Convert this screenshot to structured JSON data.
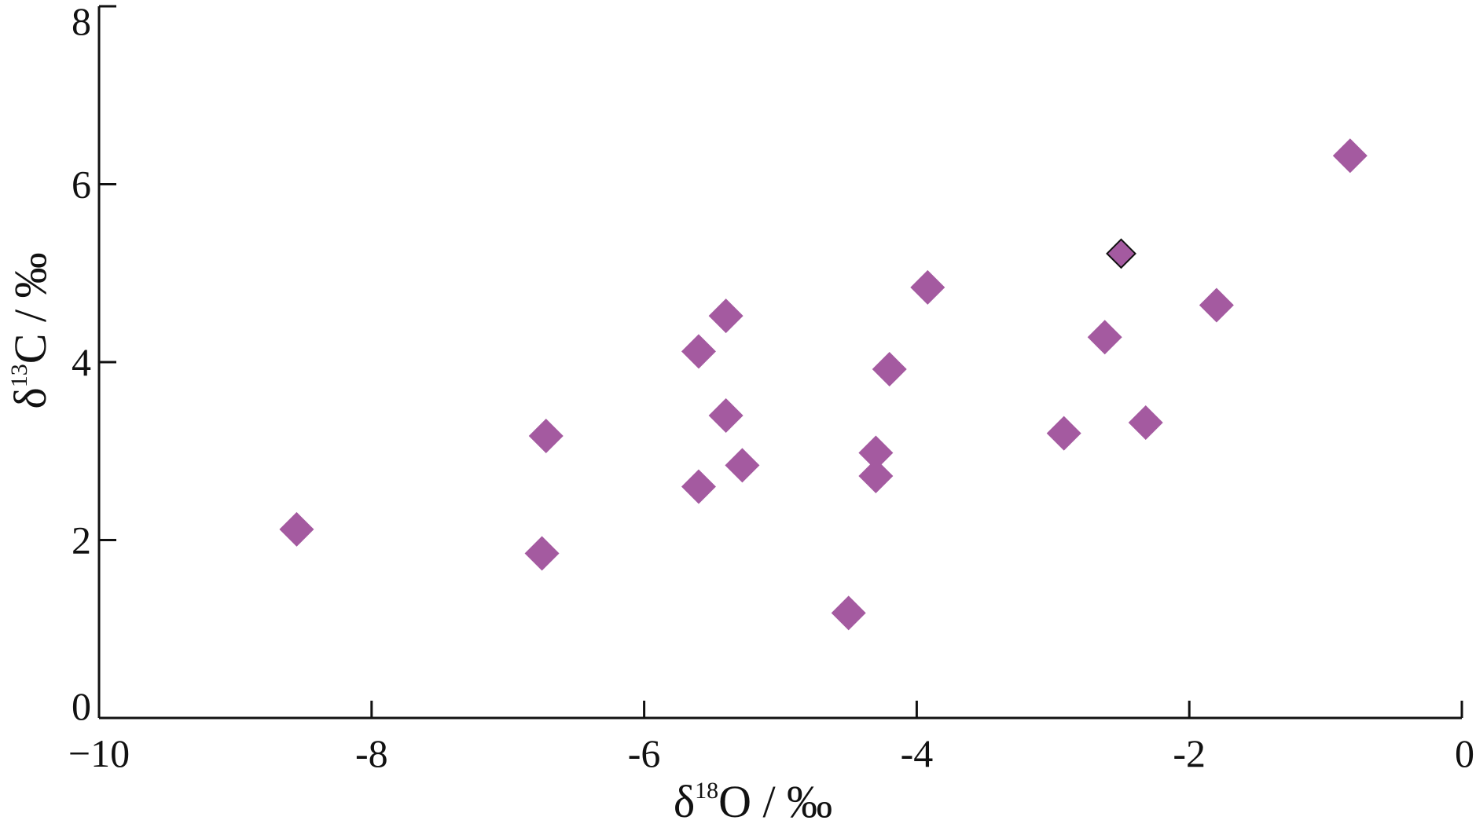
{
  "chart_data": {
    "type": "scatter",
    "title": "",
    "xlabel": {
      "prefix": "δ",
      "sup": "18",
      "suffix": "O / ‰"
    },
    "ylabel": {
      "prefix": "δ",
      "sup": "13",
      "suffix": "C / ‰"
    },
    "xlim": [
      -10,
      0
    ],
    "ylim": [
      0,
      8
    ],
    "x_ticks": [
      -10,
      -8,
      -6,
      -4,
      -2,
      0
    ],
    "x_tick_labels": [
      "−10",
      "-8",
      "-6",
      "-4",
      "-2",
      "0"
    ],
    "y_ticks": [
      0,
      2,
      4,
      6,
      8
    ],
    "y_tick_labels": [
      "0",
      "2",
      "4",
      "6",
      "8"
    ],
    "grid": false,
    "marker": "diamond",
    "marker_color": "#a45aa0",
    "highlight_stroke": "#111111",
    "series": [
      {
        "points": [
          {
            "x": -8.55,
            "y": 2.12
          },
          {
            "x": -6.75,
            "y": 1.85
          },
          {
            "x": -6.72,
            "y": 3.17
          },
          {
            "x": -5.6,
            "y": 2.6
          },
          {
            "x": -5.6,
            "y": 4.12
          },
          {
            "x": -5.4,
            "y": 4.52
          },
          {
            "x": -5.4,
            "y": 3.4
          },
          {
            "x": -5.28,
            "y": 2.84
          },
          {
            "x": -4.5,
            "y": 1.18
          },
          {
            "x": -4.3,
            "y": 2.98
          },
          {
            "x": -4.3,
            "y": 2.72
          },
          {
            "x": -4.2,
            "y": 3.92
          },
          {
            "x": -3.92,
            "y": 4.84
          },
          {
            "x": -2.92,
            "y": 3.2
          },
          {
            "x": -2.62,
            "y": 4.28
          },
          {
            "x": -2.5,
            "y": 5.22,
            "highlight": true
          },
          {
            "x": -2.32,
            "y": 3.32
          },
          {
            "x": -1.8,
            "y": 4.64
          },
          {
            "x": -0.82,
            "y": 6.32
          }
        ]
      }
    ]
  }
}
